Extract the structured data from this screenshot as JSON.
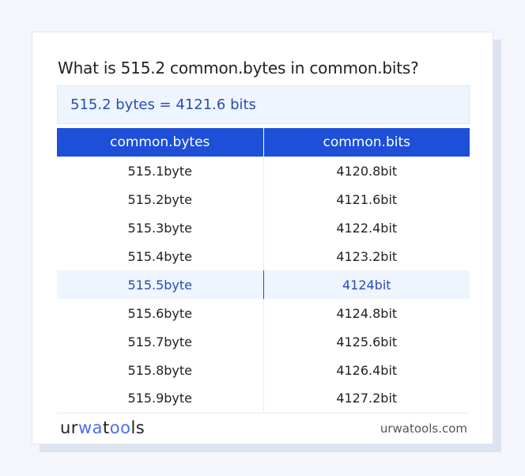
{
  "title": "What is 515.2 common.bytes in common.bits?",
  "result": "515.2 bytes = 4121.6 bits",
  "table": {
    "headers": [
      "common.bytes",
      "common.bits"
    ],
    "rows": [
      [
        "515.1byte",
        "4120.8bit"
      ],
      [
        "515.2byte",
        "4121.6bit"
      ],
      [
        "515.3byte",
        "4122.4bit"
      ],
      [
        "515.4byte",
        "4123.2bit"
      ],
      [
        "515.5byte",
        "4124bit"
      ],
      [
        "515.6byte",
        "4124.8bit"
      ],
      [
        "515.7byte",
        "4125.6bit"
      ],
      [
        "515.8byte",
        "4126.4bit"
      ],
      [
        "515.9byte",
        "4127.2bit"
      ]
    ],
    "highlighted_row": 4
  },
  "footer": {
    "logo": "urwatools",
    "site": "urwatools.com"
  },
  "colors": {
    "accent": "#1d4fd8",
    "highlight_bg": "#eef5ff",
    "highlight_text": "#2a4bb5"
  }
}
